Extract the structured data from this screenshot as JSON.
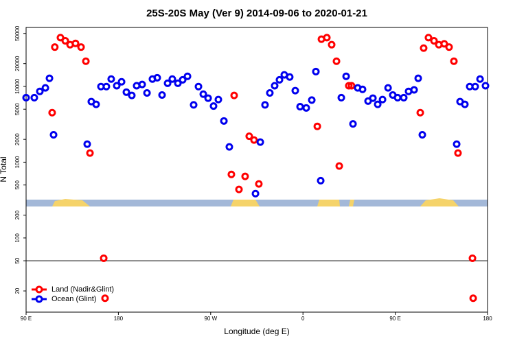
{
  "chart_data": {
    "type": "scatter",
    "title": "25S-20S May (Ver 9)   2014-09-06 to 2020-01-21",
    "xlabel": "Longitude (deg E)",
    "ylabel": "N Total",
    "log_y": true,
    "legend": "lower left",
    "reference_line": 50,
    "xlim": [
      90,
      540
    ],
    "ylim": [
      10.5,
      60000
    ],
    "xticks": [
      {
        "value": 90,
        "label": "90 E"
      },
      180,
      {
        "value": 270,
        "label": "90 W"
      },
      {
        "value": 360,
        "label": "0"
      },
      {
        "value": 450,
        "label": "90 E"
      },
      {
        "value": 540,
        "label": "180"
      }
    ],
    "yticks": [
      20,
      50,
      100,
      200,
      500,
      1000,
      2000,
      5000,
      10000,
      20000,
      50000
    ],
    "series": [
      {
        "name": "Land (Nadir&Glint)",
        "color": "#ff0000",
        "x": [
          115.4,
          118,
          123.5,
          128.2,
          132.9,
          138.2,
          143.6,
          148.3,
          152.3,
          165.7,
          167,
          290.2,
          292.9,
          297.6,
          303.6,
          307.6,
          312.3,
          317,
          374,
          378,
          383.3,
          388,
          392.7,
          395.4,
          404.7,
          407.4,
          474.4,
          477.7,
          482.4,
          487.8,
          492.5,
          497.8,
          502.5,
          507.2,
          511.2,
          525.3,
          526
        ],
        "values": [
          4500,
          33000,
          44000,
          40000,
          35500,
          37000,
          33000,
          21500,
          1320,
          54,
          16,
          690,
          7600,
          437,
          650,
          2200,
          1960,
          516,
          2970,
          42000,
          44000,
          35500,
          21500,
          890,
          10200,
          10200,
          4500,
          32000,
          44000,
          40000,
          35500,
          36500,
          33000,
          21500,
          1320,
          54,
          16
        ]
      },
      {
        "name": "Ocean (Glint)",
        "color": "#0000ee",
        "x": [
          90,
          98,
          103.4,
          108.8,
          112.8,
          116.8,
          149.6,
          153.6,
          158.3,
          163,
          168.3,
          173,
          178.4,
          183.1,
          187.8,
          193.1,
          197.8,
          203.2,
          207.9,
          213.2,
          217.9,
          222.6,
          228,
          232.6,
          238,
          242.7,
          247.4,
          253.4,
          258.1,
          262.8,
          267.5,
          272.8,
          277.5,
          282.9,
          288.2,
          313.7,
          318.4,
          323,
          327.7,
          332.4,
          337.1,
          341.8,
          347.1,
          352.5,
          357.2,
          363.2,
          368.6,
          372.6,
          377.3,
          397.4,
          402.1,
          408.8,
          413.4,
          418.1,
          423.5,
          428.2,
          432.9,
          437.6,
          443,
          447.6,
          452.3,
          458.3,
          463,
          468.4,
          472.4,
          476.4,
          509.9,
          513.2,
          517.9,
          522.6,
          528,
          532.7,
          538
        ],
        "values": [
          7100,
          7100,
          8600,
          9550,
          12800,
          2300,
          1730,
          6300,
          5800,
          9950,
          9950,
          12500,
          10200,
          11500,
          8400,
          7600,
          10200,
          10600,
          8200,
          12500,
          13000,
          7700,
          11000,
          12500,
          11000,
          12200,
          13600,
          5700,
          9950,
          7900,
          7000,
          5500,
          6700,
          3500,
          1590,
          385,
          1840,
          5700,
          8200,
          10200,
          12200,
          14200,
          13300,
          8800,
          5400,
          5200,
          6600,
          15700,
          570,
          7100,
          13600,
          3200,
          9550,
          9150,
          6400,
          7000,
          5800,
          6700,
          9550,
          7700,
          7100,
          7100,
          8600,
          9000,
          12800,
          2300,
          1730,
          6300,
          5800,
          9950,
          9950,
          12500,
          10200
        ]
      }
    ]
  }
}
